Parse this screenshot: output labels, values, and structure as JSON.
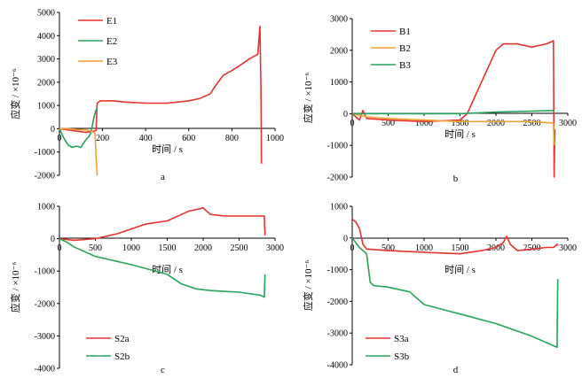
{
  "chart_data": [
    {
      "panel_label": "a",
      "type": "line",
      "xlabel": "时间 / s",
      "ylabel": "应变 / ×10⁻⁶",
      "xlim": [
        0,
        1000
      ],
      "ylim": [
        -2000,
        5000
      ],
      "x_ticks": [
        0,
        200,
        400,
        600,
        800,
        1000
      ],
      "y_ticks": [
        -2000,
        -1000,
        0,
        1000,
        2000,
        3000,
        4000,
        5000
      ],
      "legend_position": "top-left",
      "series": [
        {
          "name": "E1",
          "color": "#e8322e",
          "x": [
            0,
            40,
            80,
            120,
            160,
            170,
            175,
            190,
            250,
            300,
            400,
            500,
            550,
            600,
            650,
            700,
            720,
            760,
            800,
            850,
            880,
            900,
            920,
            930,
            935,
            937
          ],
          "y": [
            0,
            -50,
            -100,
            -150,
            -100,
            -80,
            1100,
            1200,
            1200,
            1150,
            1100,
            1100,
            1150,
            1200,
            1300,
            1500,
            1800,
            2300,
            2500,
            2800,
            3000,
            3100,
            3200,
            4400,
            1500,
            -1500
          ]
        },
        {
          "name": "E2",
          "color": "#25a55a",
          "x": [
            0,
            20,
            40,
            60,
            80,
            100,
            120,
            140,
            150,
            160,
            170,
            175
          ],
          "y": [
            0,
            -400,
            -700,
            -800,
            -750,
            -800,
            -500,
            -300,
            0,
            500,
            800,
            900
          ]
        },
        {
          "name": "E3",
          "color": "#f0a131",
          "x": [
            0,
            40,
            80,
            120,
            150,
            165,
            170,
            175
          ],
          "y": [
            0,
            0,
            -30,
            -50,
            -100,
            -200,
            -1200,
            -2000
          ]
        }
      ]
    },
    {
      "panel_label": "b",
      "type": "line",
      "xlabel": "时间 / s",
      "ylabel": "应变 / ×10⁻⁶",
      "xlim": [
        0,
        3000
      ],
      "ylim": [
        -2000,
        3000
      ],
      "x_ticks": [
        0,
        500,
        1000,
        1500,
        2000,
        2500,
        3000
      ],
      "y_ticks": [
        -2000,
        -1000,
        0,
        1000,
        2000,
        3000
      ],
      "legend_position": "top-left",
      "series": [
        {
          "name": "B1",
          "color": "#e8322e",
          "x": [
            0,
            100,
            150,
            200,
            500,
            1000,
            1500,
            1600,
            1700,
            1800,
            1900,
            2000,
            2100,
            2300,
            2500,
            2700,
            2800,
            2810,
            2820
          ],
          "y": [
            0,
            -200,
            100,
            -150,
            -200,
            -250,
            -200,
            0,
            500,
            1000,
            1500,
            2000,
            2200,
            2200,
            2100,
            2200,
            2300,
            -2000,
            -500
          ]
        },
        {
          "name": "B2",
          "color": "#f0a131",
          "x": [
            0,
            200,
            500,
            1000,
            1500,
            2000,
            2500,
            2800,
            2810
          ],
          "y": [
            0,
            -100,
            -150,
            -200,
            -250,
            -250,
            -250,
            -300,
            -1000
          ]
        },
        {
          "name": "B3",
          "color": "#25a55a",
          "x": [
            0,
            500,
            1000,
            1500,
            2000,
            2500,
            2800,
            2810
          ],
          "y": [
            0,
            0,
            0,
            0,
            50,
            80,
            100,
            50
          ]
        }
      ]
    },
    {
      "panel_label": "c",
      "type": "line",
      "xlabel": "时间 / s",
      "ylabel": "应变 / ×10⁻⁶",
      "xlim": [
        0,
        3000
      ],
      "ylim": [
        -4000,
        1000
      ],
      "x_ticks": [
        0,
        500,
        1000,
        1500,
        2000,
        2500,
        3000
      ],
      "y_ticks": [
        -4000,
        -3000,
        -2000,
        -1000,
        0,
        1000
      ],
      "legend_position": "bottom-left",
      "series": [
        {
          "name": "S2a",
          "color": "#e8322e",
          "x": [
            0,
            200,
            500,
            800,
            1000,
            1200,
            1500,
            1700,
            1800,
            1900,
            2000,
            2100,
            2300,
            2500,
            2700,
            2850,
            2860
          ],
          "y": [
            0,
            -50,
            0,
            150,
            300,
            450,
            550,
            750,
            850,
            900,
            950,
            750,
            700,
            700,
            700,
            700,
            100
          ]
        },
        {
          "name": "S2b",
          "color": "#25a55a",
          "x": [
            0,
            100,
            200,
            500,
            1000,
            1500,
            1700,
            1900,
            2100,
            2500,
            2800,
            2850,
            2860
          ],
          "y": [
            0,
            -100,
            -250,
            -550,
            -800,
            -1100,
            -1400,
            -1550,
            -1600,
            -1650,
            -1750,
            -1800,
            -1100
          ]
        }
      ]
    },
    {
      "panel_label": "d",
      "type": "line",
      "xlabel": "时间 / s",
      "ylabel": "应变 / ×10⁻⁶",
      "xlim": [
        0,
        3000
      ],
      "ylim": [
        -4000,
        1000
      ],
      "x_ticks": [
        0,
        500,
        1000,
        1500,
        2000,
        2500,
        3000
      ],
      "y_ticks": [
        -4000,
        -3000,
        -2000,
        -1000,
        0,
        1000
      ],
      "legend_position": "bottom-left",
      "series": [
        {
          "name": "S3a",
          "color": "#e8322e",
          "x": [
            0,
            50,
            100,
            150,
            200,
            500,
            1000,
            1500,
            1800,
            2000,
            2100,
            2150,
            2200,
            2300,
            2500,
            2700,
            2800,
            2850,
            2860
          ],
          "y": [
            600,
            500,
            300,
            -200,
            -350,
            -400,
            -450,
            -500,
            -400,
            -300,
            -150,
            50,
            -200,
            -400,
            -350,
            -300,
            -300,
            -200,
            -250
          ]
        },
        {
          "name": "S3b",
          "color": "#25a55a",
          "x": [
            0,
            100,
            200,
            250,
            300,
            500,
            800,
            1000,
            1500,
            2000,
            2500,
            2800,
            2850,
            2860
          ],
          "y": [
            0,
            -300,
            -500,
            -1400,
            -1500,
            -1550,
            -1700,
            -2100,
            -2400,
            -2700,
            -3100,
            -3400,
            -3450,
            -1300
          ]
        }
      ]
    }
  ]
}
